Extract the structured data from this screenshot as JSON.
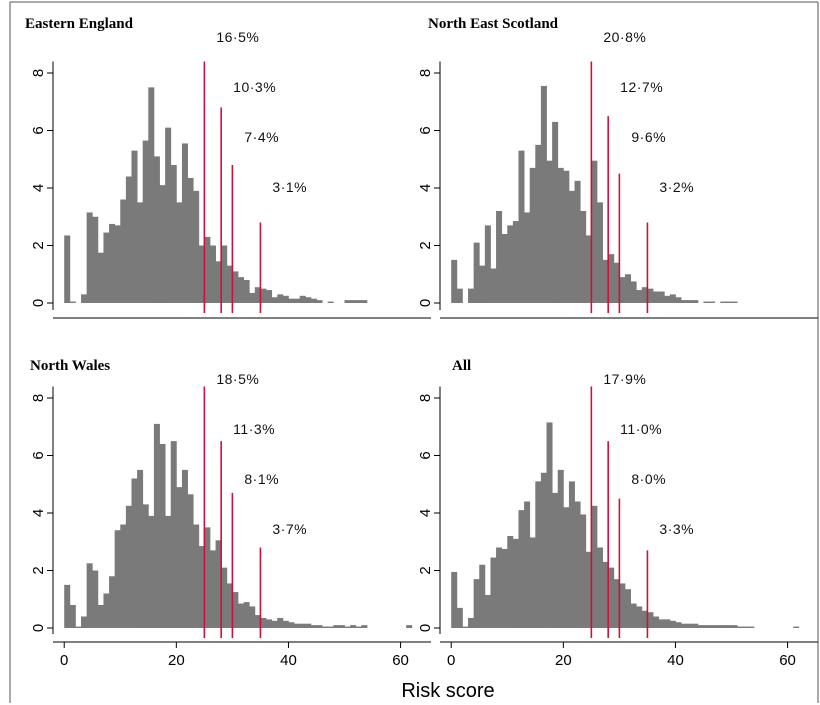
{
  "chart_data": {
    "type": "bar",
    "xlabel": "Risk score",
    "ylabel": "",
    "xlim": [
      -2,
      64
    ],
    "ylim": [
      -0.4,
      8.6
    ],
    "x_ticks": [
      0,
      20,
      40,
      60
    ],
    "y_ticks": [
      0,
      2,
      4,
      6,
      8
    ],
    "bar_width": 1,
    "colors": {
      "bars": "#7a7a7a",
      "cutoff_lines": "#d0103a"
    },
    "panels": [
      {
        "title": "Eastern England",
        "x": [
          0,
          1,
          2,
          3,
          4,
          5,
          6,
          7,
          8,
          9,
          10,
          11,
          12,
          13,
          14,
          15,
          16,
          17,
          18,
          19,
          20,
          21,
          22,
          23,
          24,
          25,
          26,
          27,
          28,
          29,
          30,
          31,
          32,
          33,
          34,
          35,
          36,
          37,
          38,
          39,
          40,
          41,
          42,
          43,
          44,
          45,
          46,
          47,
          48,
          49,
          50,
          51,
          52,
          53
        ],
        "values": [
          2.35,
          0.05,
          0,
          0.3,
          3.15,
          3.0,
          1.75,
          2.45,
          2.75,
          2.7,
          3.6,
          4.4,
          5.3,
          3.5,
          5.65,
          7.5,
          5.1,
          4.1,
          6.1,
          4.8,
          3.5,
          5.55,
          4.35,
          3.9,
          2.0,
          2.3,
          2.0,
          1.45,
          2.0,
          1.3,
          1.1,
          0.9,
          0.8,
          0.35,
          0.55,
          0.5,
          0.45,
          0.2,
          0.3,
          0.25,
          0.15,
          0.15,
          0.25,
          0.2,
          0.15,
          0.1,
          0,
          0.05,
          0,
          0,
          0.1,
          0.1,
          0.1,
          0.1
        ],
        "cutoffs": [
          {
            "x": 25,
            "height": 8.4,
            "label": "16·5%"
          },
          {
            "x": 28,
            "height": 6.8,
            "label": "10·3%"
          },
          {
            "x": 30,
            "height": 4.8,
            "label": "7·4%"
          },
          {
            "x": 35,
            "height": 2.8,
            "label": "3·1%"
          }
        ]
      },
      {
        "title": "North East Scotland",
        "x": [
          0,
          1,
          2,
          3,
          4,
          5,
          6,
          7,
          8,
          9,
          10,
          11,
          12,
          13,
          14,
          15,
          16,
          17,
          18,
          19,
          20,
          21,
          22,
          23,
          24,
          25,
          26,
          27,
          28,
          29,
          30,
          31,
          32,
          33,
          34,
          35,
          36,
          37,
          38,
          39,
          40,
          41,
          42,
          43,
          44,
          45,
          46,
          47,
          48,
          49,
          50
        ],
        "values": [
          1.5,
          0.5,
          0,
          0.5,
          2.1,
          1.3,
          2.7,
          1.2,
          3.2,
          2.4,
          2.7,
          2.85,
          5.3,
          3.15,
          4.7,
          5.5,
          7.55,
          4.95,
          6.3,
          4.7,
          4.6,
          3.9,
          4.25,
          3.2,
          2.35,
          4.95,
          3.5,
          1.5,
          1.7,
          1.4,
          0.9,
          1.0,
          0.75,
          0.45,
          0.55,
          0.5,
          0.4,
          0.4,
          0.25,
          0.3,
          0.2,
          0.1,
          0.1,
          0.1,
          0,
          0.05,
          0.05,
          0,
          0.05,
          0.05,
          0.05
        ],
        "cutoffs": [
          {
            "x": 25,
            "height": 8.4,
            "label": "20·8%"
          },
          {
            "x": 28,
            "height": 6.5,
            "label": "12·7%"
          },
          {
            "x": 30,
            "height": 4.5,
            "label": "9·6%"
          },
          {
            "x": 35,
            "height": 2.8,
            "label": "3·2%"
          }
        ]
      },
      {
        "title": "North Wales",
        "x": [
          0,
          1,
          2,
          3,
          4,
          5,
          6,
          7,
          8,
          9,
          10,
          11,
          12,
          13,
          14,
          15,
          16,
          17,
          18,
          19,
          20,
          21,
          22,
          23,
          24,
          25,
          26,
          27,
          28,
          29,
          30,
          31,
          32,
          33,
          34,
          35,
          36,
          37,
          38,
          39,
          40,
          41,
          42,
          43,
          44,
          45,
          46,
          47,
          48,
          49,
          50,
          51,
          52,
          53,
          54,
          55,
          56,
          57,
          58,
          59,
          60,
          61
        ],
        "values": [
          1.5,
          0.8,
          0.05,
          0.4,
          2.25,
          2.0,
          0.8,
          1.2,
          1.8,
          3.4,
          3.6,
          4.25,
          5.2,
          5.5,
          4.3,
          3.9,
          7.1,
          6.4,
          3.9,
          6.5,
          4.9,
          5.5,
          4.65,
          3.6,
          2.85,
          3.5,
          2.7,
          3.05,
          2.1,
          1.55,
          1.25,
          0.85,
          0.9,
          0.75,
          0.45,
          0.35,
          0.3,
          0.25,
          0.35,
          0.25,
          0.2,
          0.15,
          0.15,
          0.15,
          0.1,
          0.1,
          0.05,
          0.05,
          0.1,
          0.1,
          0.05,
          0.1,
          0.05,
          0.1,
          0,
          0,
          0,
          0,
          0,
          0,
          0,
          0.1
        ],
        "cutoffs": [
          {
            "x": 25,
            "height": 8.4,
            "label": "18·5%"
          },
          {
            "x": 28,
            "height": 6.5,
            "label": "11·3%"
          },
          {
            "x": 30,
            "height": 4.7,
            "label": "8·1%"
          },
          {
            "x": 35,
            "height": 2.8,
            "label": "3·7%"
          }
        ]
      },
      {
        "title": "All",
        "x": [
          0,
          1,
          2,
          3,
          4,
          5,
          6,
          7,
          8,
          9,
          10,
          11,
          12,
          13,
          14,
          15,
          16,
          17,
          18,
          19,
          20,
          21,
          22,
          23,
          24,
          25,
          26,
          27,
          28,
          29,
          30,
          31,
          32,
          33,
          34,
          35,
          36,
          37,
          38,
          39,
          40,
          41,
          42,
          43,
          44,
          45,
          46,
          47,
          48,
          49,
          50,
          51,
          52,
          53,
          54,
          55,
          56,
          57,
          58,
          59,
          60,
          61
        ],
        "values": [
          1.95,
          0.7,
          0.05,
          0.35,
          1.7,
          2.2,
          1.15,
          2.45,
          2.8,
          2.75,
          3.2,
          3.1,
          4.1,
          4.4,
          3.15,
          5.1,
          5.4,
          7.15,
          4.7,
          5.5,
          4.2,
          5.1,
          4.4,
          3.95,
          2.65,
          4.25,
          2.8,
          2.3,
          2.1,
          1.7,
          1.55,
          1.35,
          0.85,
          0.75,
          0.6,
          0.55,
          0.4,
          0.3,
          0.3,
          0.25,
          0.2,
          0.15,
          0.15,
          0.15,
          0.1,
          0.1,
          0.1,
          0.1,
          0.1,
          0.1,
          0.1,
          0.05,
          0.05,
          0.05,
          0,
          0,
          0,
          0,
          0,
          0,
          0,
          0.05
        ],
        "cutoffs": [
          {
            "x": 25,
            "height": 8.4,
            "label": "17·9%"
          },
          {
            "x": 28,
            "height": 6.5,
            "label": "11·0%"
          },
          {
            "x": 30,
            "height": 4.5,
            "label": "8·0%"
          },
          {
            "x": 35,
            "height": 2.7,
            "label": "3·3%"
          }
        ]
      }
    ]
  }
}
